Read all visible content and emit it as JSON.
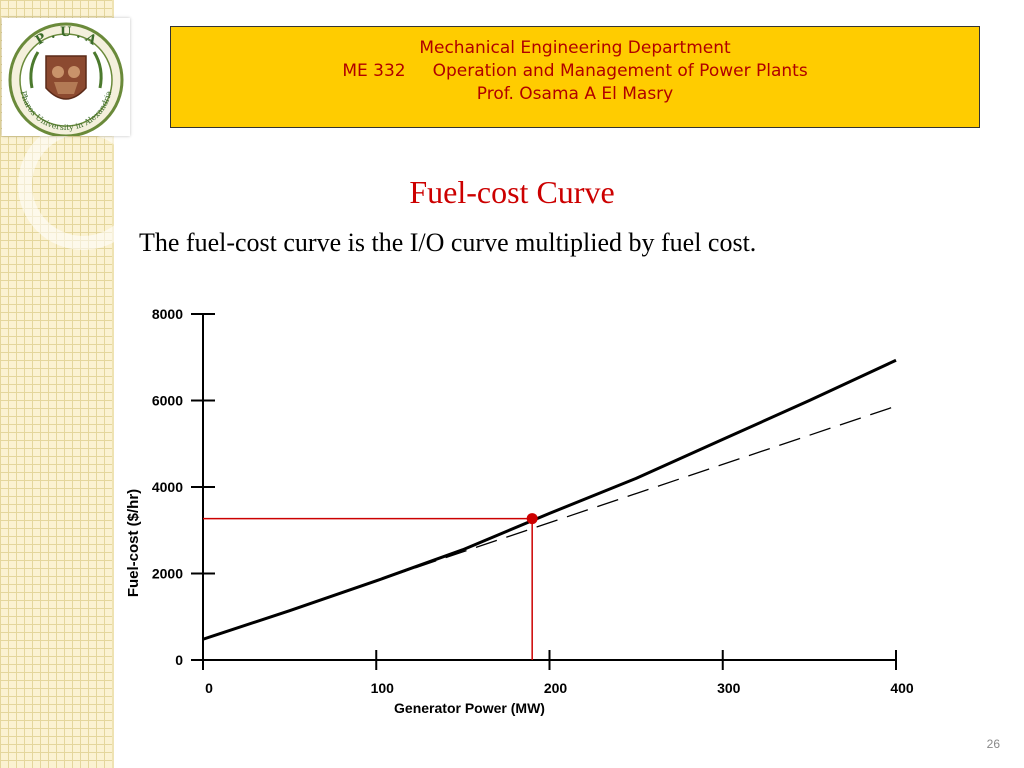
{
  "header": {
    "line1": "Mechanical Engineering Department",
    "line2": "ME 332     Operation and Management of Power Plants",
    "line3": "Prof. Osama A El Masry"
  },
  "logo": {
    "letters": "P . U . A",
    "ring_text": "Pharos University in Alexandria"
  },
  "slide": {
    "title": "Fuel-cost Curve",
    "subtitle": "The fuel-cost curve is the I/O curve multiplied by fuel cost.",
    "number": "26"
  },
  "colors": {
    "header_bg": "#ffcc00",
    "header_text": "#b00000",
    "title": "#cc0000",
    "marker": "#cc0000"
  },
  "chart_data": {
    "type": "line",
    "xlabel": "Generator Power (MW)",
    "ylabel": "Fuel-cost ($/hr)",
    "xlim": [
      0,
      400
    ],
    "ylim": [
      0,
      8000
    ],
    "x_ticks": [
      "0",
      "100",
      "200",
      "300",
      "400"
    ],
    "y_ticks": [
      "0",
      "2000",
      "4000",
      "6000",
      "8000"
    ],
    "grid": false,
    "series": [
      {
        "style": "solid",
        "x": [
          0,
          50,
          100,
          150,
          200,
          250,
          300,
          350,
          400
        ],
        "y": [
          480,
          1140,
          1830,
          2550,
          3390,
          4200,
          5100,
          6000,
          6930
        ]
      },
      {
        "style": "dashed",
        "x": [
          0,
          400
        ],
        "y": [
          480,
          5870
        ]
      }
    ],
    "marked_point": {
      "x": 190,
      "y": 3270
    }
  }
}
